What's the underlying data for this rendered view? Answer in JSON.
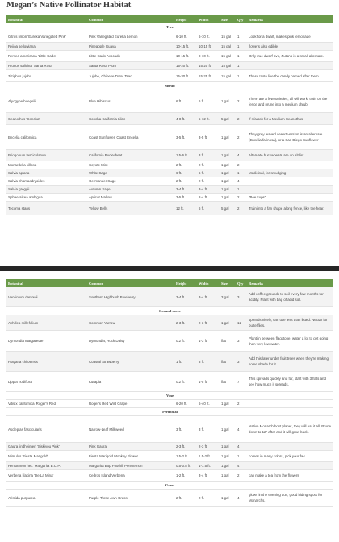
{
  "title": "Megan’s Native Pollinator Habitat",
  "headers": [
    "Botanical",
    "Common",
    "Height",
    "Width",
    "Size",
    "Qty",
    "Remarks"
  ],
  "table1": [
    {
      "section": "Tree"
    },
    {
      "cells": [
        "Citrus limon 'Eureka Variegated Pink'",
        "Pink Variegated Eureka Lemon",
        "6-10 ft.",
        "6-10 ft.",
        "15 gal",
        "1",
        "Look for a dwarf, makes pink lemonade"
      ],
      "h": 13
    },
    {
      "cells": [
        "Feijoa sellowiana",
        "Pineapple Guava",
        "10-15 ft.",
        "10-15 ft.",
        "15 gal",
        "1",
        "flowers also edible"
      ],
      "h": 9
    },
    {
      "cells": [
        "Persea americana 'Little Cado'",
        "Little Cado Avocado",
        "10-15 ft.",
        "8-10 ft.",
        "15 gal",
        "1",
        "Only true dwarf avo, Zutano is a small alternate."
      ],
      "h": 13
    },
    {
      "cells": [
        "Prunus salicina 'Santa Rosa'",
        "Santa Rosa Plum",
        "15-20 ft.",
        "15-20 ft.",
        "15 gal",
        "1",
        ""
      ],
      "h": 9
    },
    {
      "cells": [
        "Ziziphus jujuba",
        "Jujube, Chinese Date, Tsao",
        "15-30 ft.",
        "15-25 ft.",
        "15 gal",
        "1",
        "These taste like the candy named after them."
      ],
      "h": 14
    },
    {
      "section": "Shrub"
    },
    {
      "cells": [
        "Alyogyne huegelii",
        "Blue Hibiscus",
        "6 ft.",
        "6 ft.",
        "1 gal",
        "2",
        "There are a few varieties, all will work, train on the fence and prune into a medium shrub."
      ],
      "h": 27
    },
    {
      "cells": [
        "Ceanothus 'Concha'",
        "Concha California Lilac",
        "4-8 ft.",
        "5-12 ft.",
        "5 gal",
        "2",
        "If n/a ask for a Medium Ceanothus"
      ],
      "h": 14
    },
    {
      "cells": [
        "Encelia californica",
        "Coast Sunflower, Coast Encelia",
        "3-5 ft.",
        "3-5 ft.",
        "1 gal",
        "2",
        "They grey leaved desert version is an alternate (Encelia farinosa), or a San Diego Sunflower"
      ],
      "h": 30
    },
    {
      "cells": [
        "Eriogonum fasciculatum",
        "California Buckwheat",
        "1.5-6 ft.",
        "3 ft.",
        "1 gal",
        "4",
        "Alternate buckwheats are on Alt list."
      ],
      "h": 13
    },
    {
      "cells": [
        "Monardella villosa",
        "Coyote Mint",
        "2 ft.",
        "2 ft.",
        "1 gal",
        "2",
        ""
      ],
      "h": 9
    },
    {
      "cells": [
        "Salvia apiana",
        "White Sage",
        "6 ft.",
        "6 ft.",
        "1 gal",
        "1",
        "Medicinal, for smudging"
      ],
      "h": 9
    },
    {
      "cells": [
        "Salvia chamaedryoides",
        "Germander Sage",
        "2 ft.",
        "2 ft.",
        "1 gal",
        "4",
        ""
      ],
      "h": 9
    },
    {
      "cells": [
        "Salvia greggii",
        "Autumn Sage",
        "3-4 ft.",
        "3-4 ft.",
        "1 gal",
        "1",
        ""
      ],
      "h": 9
    },
    {
      "cells": [
        "Sphaeralcea ambigua",
        "Apricot Mallow",
        "3-5 ft.",
        "2-4 ft.",
        "1 gal",
        "2",
        "\"Bee cups\""
      ],
      "h": 9
    },
    {
      "cells": [
        "Tecoma stans",
        "Yellow Bells",
        "12 ft.",
        "6 ft.",
        "5 gal",
        "2",
        "Train into a fan shape along fence, like the hear."
      ],
      "h": 16
    }
  ],
  "table2": [
    {
      "cells": [
        "Vaccinium darrowii",
        "Southern Highbush Blueberry",
        "3-4 ft.",
        "3-4 ft.",
        "3 gal",
        "3",
        "Add coffee grounds to soil every few months for acidity. Plant with bag of acid soil."
      ],
      "h": 24
    },
    {
      "section": "Ground cover"
    },
    {
      "cells": [
        "Achillea millefolium",
        "Common Yarrow",
        "2-3 ft.",
        "2-3 ft.",
        "1 gal",
        "12",
        "spreads nicely, can use less than listed. Nectar for butterflies."
      ],
      "h": 18
    },
    {
      "cells": [
        "Dymondia margaretae",
        "Dymondia, Rock Daisy",
        "0.2 ft.",
        "1-3 ft.",
        "flat",
        "3",
        "Plant in between flagstone, water a lot to get going then very low water."
      ],
      "h": 25
    },
    {
      "cells": [
        "Fragaria chiloensis",
        "Coastal Strawberry",
        "1 ft.",
        "3 ft.",
        "flat",
        "3",
        "Add this later under fruit trees when they're making some shade for it."
      ],
      "h": 24
    },
    {
      "cells": [
        "Lippia nodiflora",
        "Kurapia",
        "0.2 ft.",
        "1-5 ft.",
        "flat",
        "7",
        "This spreads quickly and far, start with 3 flats and see how much it spreads."
      ],
      "h": 24
    },
    {
      "section": "Vine"
    },
    {
      "cells": [
        "Vitis x californica 'Roger's Red'",
        "Roger's Red Wild Grape",
        "6-20 ft.",
        "6-40 ft.",
        "1 gal",
        "2",
        ""
      ],
      "h": 9
    },
    {
      "section": "Perennial"
    },
    {
      "cells": [
        "Asclepias fascicularis",
        "Narrow-Leaf Milkweed",
        "3 ft.",
        "3 ft.",
        "1 gal",
        "4",
        "Native Monarch host planet, they will eat it all. Prune down to 12\" after and it will grow back."
      ],
      "h": 32
    },
    {
      "cells": [
        "Gaura lindheimeri 'Siskiyou Pink'",
        "Pink Gaura",
        "2-3 ft.",
        "2-3 ft.",
        "1 gal",
        "4",
        ""
      ],
      "h": 9
    },
    {
      "cells": [
        "Mimulus 'Fiesta Marigold'",
        "Fiesta Marigold Monkey Flower",
        "1.5-2 ft.",
        "1.5-2 ft.",
        "1 gal",
        "1",
        "comes in many colors, pick your fav."
      ],
      "h": 13
    },
    {
      "cells": [
        "Penstemon het. 'Margarita B.O.P.'",
        "Margarita Bop Foothill Penstemon",
        "0.5-0.8 ft.",
        "1-1.5 ft.",
        "1 gal",
        "4",
        ""
      ],
      "h": 9
    },
    {
      "cells": [
        "Verbena lilacina 'De La Mina'",
        "Cedros Island Verbena",
        "1-2 ft.",
        "3-4 ft.",
        "1 gal",
        "2",
        "can make a tea from the flowers"
      ],
      "h": 13
    },
    {
      "section": "Grass"
    },
    {
      "cells": [
        "Aristida purpurea",
        "Purple Three Awn Grass",
        "2 ft.",
        "2 ft.",
        "1 gal",
        "4",
        "glows in the evening sun, good hiding spots for Monarchs."
      ],
      "h": 20
    }
  ]
}
